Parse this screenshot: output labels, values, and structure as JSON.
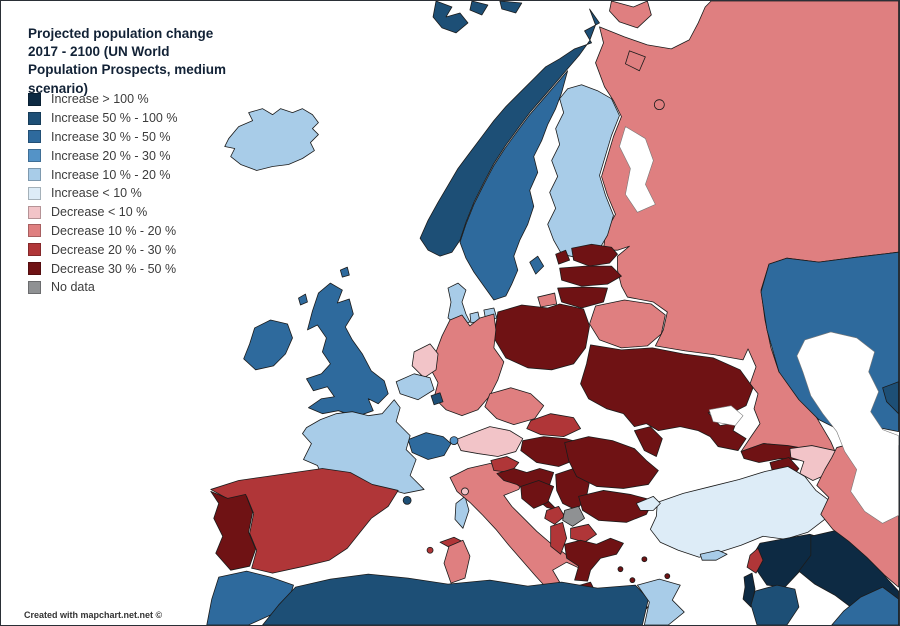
{
  "title": "Projected population change\n2017 - 2100 (UN World\nPopulation Prospects, medium\nscenario)",
  "watermark": "Created with mapchart.net.net ©",
  "legend": {
    "items": [
      {
        "key": "inc_gt100",
        "label": "Increase > 100 %",
        "color": "#0d2a43"
      },
      {
        "key": "inc_50_100",
        "label": "Increase 50 % - 100 %",
        "color": "#1d4f76"
      },
      {
        "key": "inc_30_50",
        "label": "Increase 30 % - 50 %",
        "color": "#2e6a9d"
      },
      {
        "key": "inc_20_30",
        "label": "Increase 20 % - 30 %",
        "color": "#5493c7"
      },
      {
        "key": "inc_10_20",
        "label": "Increase 10 % - 20 %",
        "color": "#a8cce8"
      },
      {
        "key": "inc_lt10",
        "label": "Increase < 10 %",
        "color": "#ddecf7"
      },
      {
        "key": "dec_lt10",
        "label": "Decrease < 10 %",
        "color": "#f2c4c8"
      },
      {
        "key": "dec_10_20",
        "label": "Decrease 10 % - 20 %",
        "color": "#df7f80"
      },
      {
        "key": "dec_20_30",
        "label": "Decrease 20 % - 30 %",
        "color": "#b03638"
      },
      {
        "key": "dec_30_50",
        "label": "Decrease 30 % - 50 %",
        "color": "#6f1214"
      },
      {
        "key": "no_data",
        "label": "No data",
        "color": "#8f9193"
      }
    ]
  },
  "map": {
    "sea_color": "#ffffff",
    "border_color": "#1b1b1b",
    "countries": {
      "iceland": "inc_10_20",
      "norway": "inc_50_100",
      "svalbard": "inc_50_100",
      "sweden": "inc_30_50",
      "finland": "inc_10_20",
      "denmark": "inc_10_20",
      "estonia": "dec_30_50",
      "latvia": "dec_30_50",
      "lithuania": "dec_30_50",
      "russia": "dec_10_20",
      "belarus": "dec_10_20",
      "poland": "dec_30_50",
      "germany": "dec_10_20",
      "netherlands": "dec_lt10",
      "belgium": "inc_10_20",
      "luxembourg": "inc_50_100",
      "uk": "inc_30_50",
      "ireland": "inc_30_50",
      "france": "inc_10_20",
      "switzerland": "inc_30_50",
      "liechtenstein": "inc_20_30",
      "austria": "dec_lt10",
      "czechia": "dec_10_20",
      "slovakia": "dec_20_30",
      "hungary": "dec_30_50",
      "slovenia": "dec_20_30",
      "croatia": "dec_30_50",
      "bosnia": "dec_30_50",
      "serbia": "dec_30_50",
      "montenegro": "dec_20_30",
      "kosovo": "no_data",
      "macedonia": "dec_20_30",
      "albania": "dec_20_30",
      "greece": "dec_30_50",
      "bulgaria": "dec_30_50",
      "romania": "dec_30_50",
      "moldova": "dec_30_50",
      "ukraine": "dec_30_50",
      "italy": "dec_10_20",
      "san_marino": "dec_lt10",
      "malta": "dec_10_20",
      "monaco": "inc_50_100",
      "andorra": "dec_10_20",
      "spain": "dec_20_30",
      "portugal": "dec_30_50",
      "turkey": "inc_lt10",
      "cyprus": "inc_10_20",
      "syria": "inc_gt100",
      "lebanon": "dec_20_30",
      "israel": "inc_gt100",
      "jordan": "inc_50_100",
      "iraq": "inc_gt100",
      "saudi_arabia": "inc_30_50",
      "iran": "dec_10_20",
      "georgia": "dec_30_50",
      "armenia": "dec_30_50",
      "azerbaijan": "dec_lt10",
      "kazakhstan": "inc_30_50",
      "uzbekistan": "inc_50_100",
      "morocco": "inc_30_50",
      "algeria": "inc_50_100",
      "tunisia": "inc_10_20"
    }
  }
}
